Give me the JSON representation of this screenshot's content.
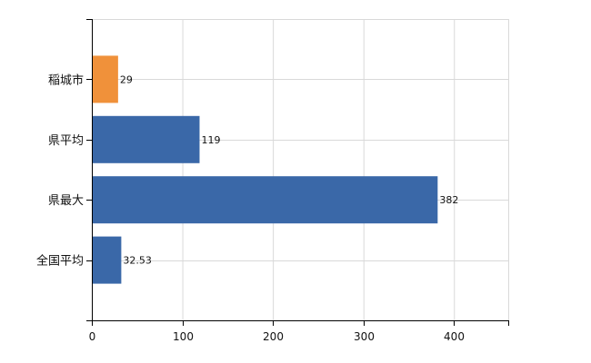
{
  "chart_data": {
    "type": "bar",
    "orientation": "horizontal",
    "categories": [
      "稲城市",
      "県平均",
      "県最大",
      "全国平均"
    ],
    "values": [
      29,
      119,
      382,
      32.53
    ],
    "value_labels": [
      "29",
      "119",
      "382",
      "32.53"
    ],
    "bar_colors": [
      "#f0913a",
      "#3a68a8",
      "#3a68a8",
      "#3a68a8"
    ],
    "xlim": [
      0,
      460
    ],
    "xticks": [
      0,
      100,
      200,
      300,
      400
    ],
    "grid": true,
    "title": "",
    "xlabel": "",
    "ylabel": ""
  }
}
